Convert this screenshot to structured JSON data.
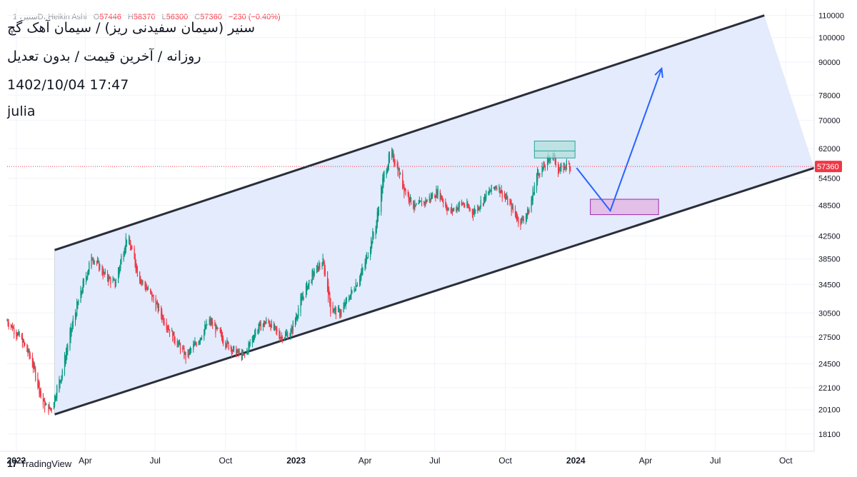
{
  "header": {
    "legend_symbol": "سنیر، 1D، Heikin Ashi",
    "open_label": "O",
    "open": "57446",
    "high_label": "H",
    "high": "58370",
    "low_label": "L",
    "low": "56300",
    "close_label": "C",
    "close": "57360",
    "change": "−230 (−0.40%)"
  },
  "annotation": {
    "line1": "سنیر (سیمان سفیدنی ریز) / سیمان آهک گچ",
    "line2": "روزانه / آخرین قیمت / بدون تعدیل",
    "line3": "1402/10/04 17:47",
    "line4": "julia"
  },
  "brand": {
    "logo": "17",
    "name": "TradingView"
  },
  "colors": {
    "up": "#089981",
    "down": "#f23645",
    "channel_fill": "#e3ebfc",
    "channel_line": "#2a2e39",
    "path": "#2962ff",
    "supply_zone": "#b2dfdb",
    "demand_zone": "#e1bee7",
    "price_line": "#f23645",
    "grid": "#f0f3fa"
  },
  "chart_data": {
    "type": "candlestick",
    "style": "Heikin Ashi",
    "interval": "1D",
    "scale": "log",
    "ylim": [
      16800,
      114000
    ],
    "x_range": [
      "2021-12-20",
      "2024-11-07"
    ],
    "y_ticks": [
      "110000",
      "100000",
      "90000",
      "78000",
      "70000",
      "62000",
      "54500",
      "48500",
      "42500",
      "38500",
      "34500",
      "30500",
      "27500",
      "24500",
      "22100",
      "20100",
      "18100"
    ],
    "x_ticks": [
      {
        "date": "2022-01-01",
        "label": "2022"
      },
      {
        "date": "2022-04-01",
        "label": "Apr"
      },
      {
        "date": "2022-07-01",
        "label": "Jul"
      },
      {
        "date": "2022-10-01",
        "label": "Oct"
      },
      {
        "date": "2023-01-01",
        "label": "2023"
      },
      {
        "date": "2023-04-01",
        "label": "Apr"
      },
      {
        "date": "2023-07-01",
        "label": "Jul"
      },
      {
        "date": "2023-10-01",
        "label": "Oct"
      },
      {
        "date": "2024-01-01",
        "label": "2024"
      },
      {
        "date": "2024-04-01",
        "label": "Apr"
      },
      {
        "date": "2024-07-01",
        "label": "Jul"
      },
      {
        "date": "2024-10-01",
        "label": "Oct"
      }
    ],
    "last_price": 57360,
    "price_path": [
      [
        "2021-12-20",
        29500
      ],
      [
        "2022-01-05",
        27500
      ],
      [
        "2022-01-20",
        25000
      ],
      [
        "2022-02-05",
        20500
      ],
      [
        "2022-02-15",
        20100
      ],
      [
        "2022-03-01",
        23500
      ],
      [
        "2022-03-20",
        31000
      ],
      [
        "2022-04-10",
        39000
      ],
      [
        "2022-04-25",
        36000
      ],
      [
        "2022-05-10",
        34500
      ],
      [
        "2022-05-25",
        42500
      ],
      [
        "2022-06-10",
        35500
      ],
      [
        "2022-06-25",
        33000
      ],
      [
        "2022-07-10",
        30000
      ],
      [
        "2022-07-25",
        27500
      ],
      [
        "2022-08-10",
        25200
      ],
      [
        "2022-08-25",
        27000
      ],
      [
        "2022-09-10",
        29500
      ],
      [
        "2022-09-25",
        27500
      ],
      [
        "2022-10-10",
        26000
      ],
      [
        "2022-10-25",
        25200
      ],
      [
        "2022-11-10",
        28500
      ],
      [
        "2022-11-25",
        29500
      ],
      [
        "2022-12-10",
        27500
      ],
      [
        "2022-12-25",
        28000
      ],
      [
        "2023-01-10",
        33000
      ],
      [
        "2023-01-25",
        36500
      ],
      [
        "2023-02-05",
        38000
      ],
      [
        "2023-02-15",
        31000
      ],
      [
        "2023-02-28",
        30500
      ],
      [
        "2023-03-15",
        33500
      ],
      [
        "2023-03-30",
        37000
      ],
      [
        "2023-04-15",
        44500
      ],
      [
        "2023-04-25",
        55000
      ],
      [
        "2023-05-05",
        61000
      ],
      [
        "2023-05-12",
        57500
      ],
      [
        "2023-05-22",
        52000
      ],
      [
        "2023-06-05",
        48000
      ],
      [
        "2023-06-20",
        49500
      ],
      [
        "2023-07-05",
        51500
      ],
      [
        "2023-07-20",
        47000
      ],
      [
        "2023-08-05",
        49000
      ],
      [
        "2023-08-20",
        47000
      ],
      [
        "2023-09-05",
        50500
      ],
      [
        "2023-09-20",
        53000
      ],
      [
        "2023-10-05",
        49000
      ],
      [
        "2023-10-20",
        45000
      ],
      [
        "2023-11-01",
        47500
      ],
      [
        "2023-11-12",
        56000
      ],
      [
        "2023-11-22",
        57500
      ],
      [
        "2023-12-01",
        61000
      ],
      [
        "2023-12-10",
        56000
      ],
      [
        "2023-12-20",
        58000
      ],
      [
        "2023-12-25",
        57360
      ]
    ],
    "channel": {
      "upper": [
        {
          "date": "2022-02-20",
          "value": 40000
        },
        {
          "date": "2024-09-03",
          "value": 110000
        }
      ],
      "lower": [
        {
          "date": "2022-02-20",
          "value": 19700
        },
        {
          "date": "2024-11-07",
          "value": 57000
        }
      ]
    },
    "zones": [
      {
        "name": "supply",
        "x0": "2023-11-08",
        "x1": "2023-12-31",
        "y_top": 64000,
        "y_bottom": 59500
      },
      {
        "name": "demand",
        "x0": "2024-01-20",
        "x1": "2024-04-18",
        "y_top": 49800,
        "y_bottom": 46600
      }
    ],
    "forecast_path": [
      {
        "date": "2024-01-02",
        "value": 57000
      },
      {
        "date": "2024-02-15",
        "value": 47400
      },
      {
        "date": "2024-04-22",
        "value": 87500
      }
    ]
  }
}
